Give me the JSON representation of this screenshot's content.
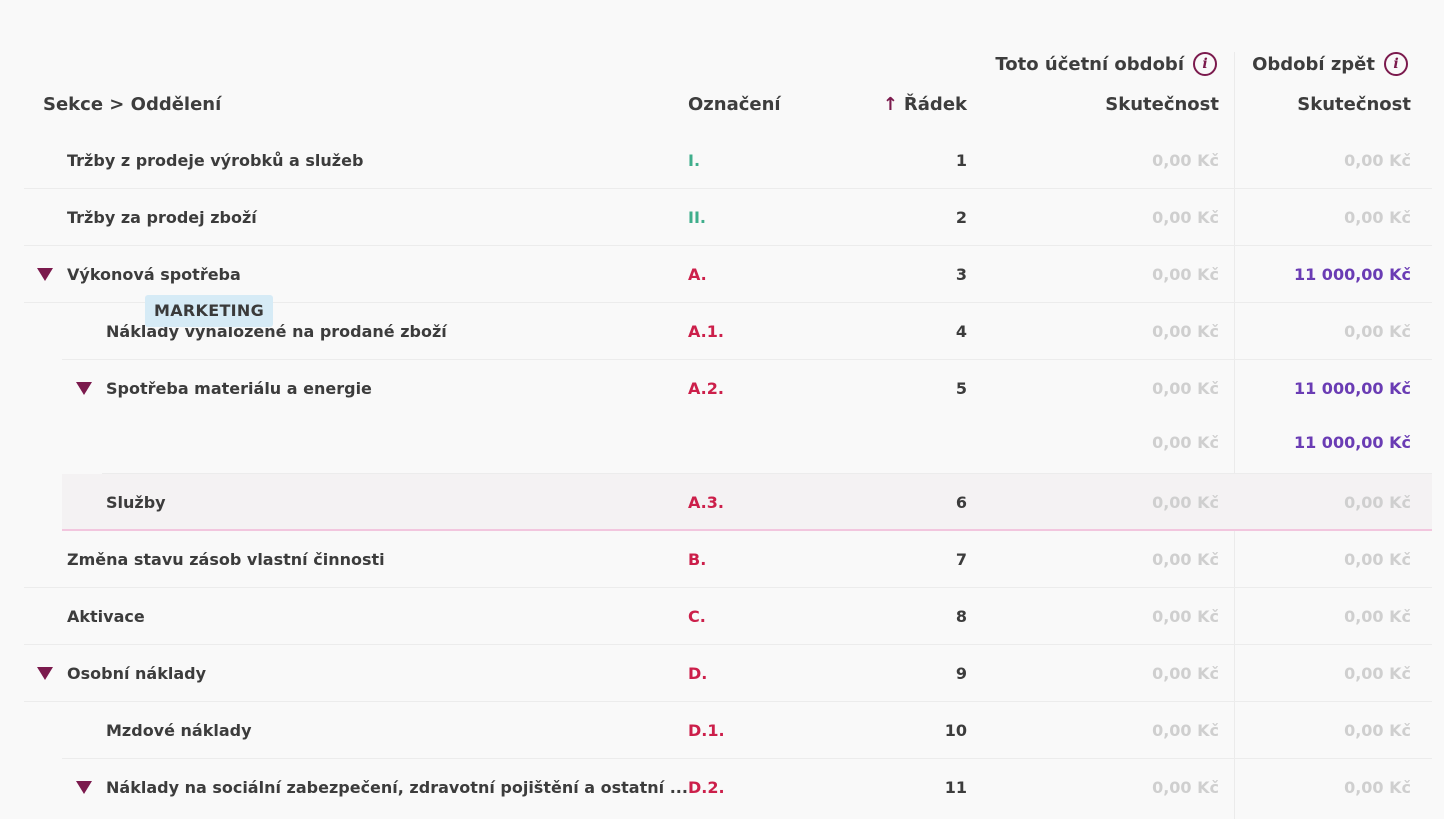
{
  "header": {
    "group1_label": "Toto účetní období",
    "group2_label": "Období zpět",
    "info_glyph": "i",
    "col_sekce": "Sekce > Oddělení",
    "col_oznaceni": "Označení",
    "col_radek": "Řádek",
    "col_radek_sort_icon": "↑",
    "col_skutecnost_1": "Skutečnost",
    "col_skutecnost_2": "Skutečnost"
  },
  "rows": [
    {
      "name": "Tržby z prodeje výrobků a služeb",
      "code": "I.",
      "line": "1",
      "current": "0,00 Kč",
      "previous": "0,00 Kč"
    },
    {
      "name": "Tržby za prodej zboží",
      "code": "II.",
      "line": "2",
      "current": "0,00 Kč",
      "previous": "0,00 Kč"
    },
    {
      "name": "Výkonová spotřeba",
      "code": "A.",
      "line": "3",
      "current": "0,00 Kč",
      "previous": "11 000,00 Kč"
    },
    {
      "name": "Náklady vynaložené na prodané zboží",
      "code": "A.1.",
      "line": "4",
      "current": "0,00 Kč",
      "previous": "0,00 Kč"
    },
    {
      "name": "Spotřeba materiálu a energie",
      "code": "A.2.",
      "line": "5",
      "current": "0,00 Kč",
      "previous": "11 000,00 Kč"
    },
    {
      "name": "MARKETING",
      "code": "",
      "line": "",
      "current": "0,00 Kč",
      "previous": "11 000,00 Kč"
    },
    {
      "name": "Služby",
      "code": "A.3.",
      "line": "6",
      "current": "0,00 Kč",
      "previous": "0,00 Kč"
    },
    {
      "name": "Změna stavu zásob vlastní činnosti",
      "code": "B.",
      "line": "7",
      "current": "0,00 Kč",
      "previous": "0,00 Kč"
    },
    {
      "name": "Aktivace",
      "code": "C.",
      "line": "8",
      "current": "0,00 Kč",
      "previous": "0,00 Kč"
    },
    {
      "name": "Osobní náklady",
      "code": "D.",
      "line": "9",
      "current": "0,00 Kč",
      "previous": "0,00 Kč"
    },
    {
      "name": "Mzdové náklady",
      "code": "D.1.",
      "line": "10",
      "current": "0,00 Kč",
      "previous": "0,00 Kč"
    },
    {
      "name": "Náklady na sociální zabezpečení, zdravotní pojištění a ostatní ...",
      "code": "D.2.",
      "line": "11",
      "current": "0,00 Kč",
      "previous": "0,00 Kč"
    }
  ],
  "colors": {
    "accent": "#7b1a4d",
    "code_green": "#3fae8c",
    "code_red": "#cc1f4a",
    "value_purple": "#6a3cb4",
    "value_muted": "#cfcfcf",
    "badge_bg": "#d6ebf6"
  }
}
